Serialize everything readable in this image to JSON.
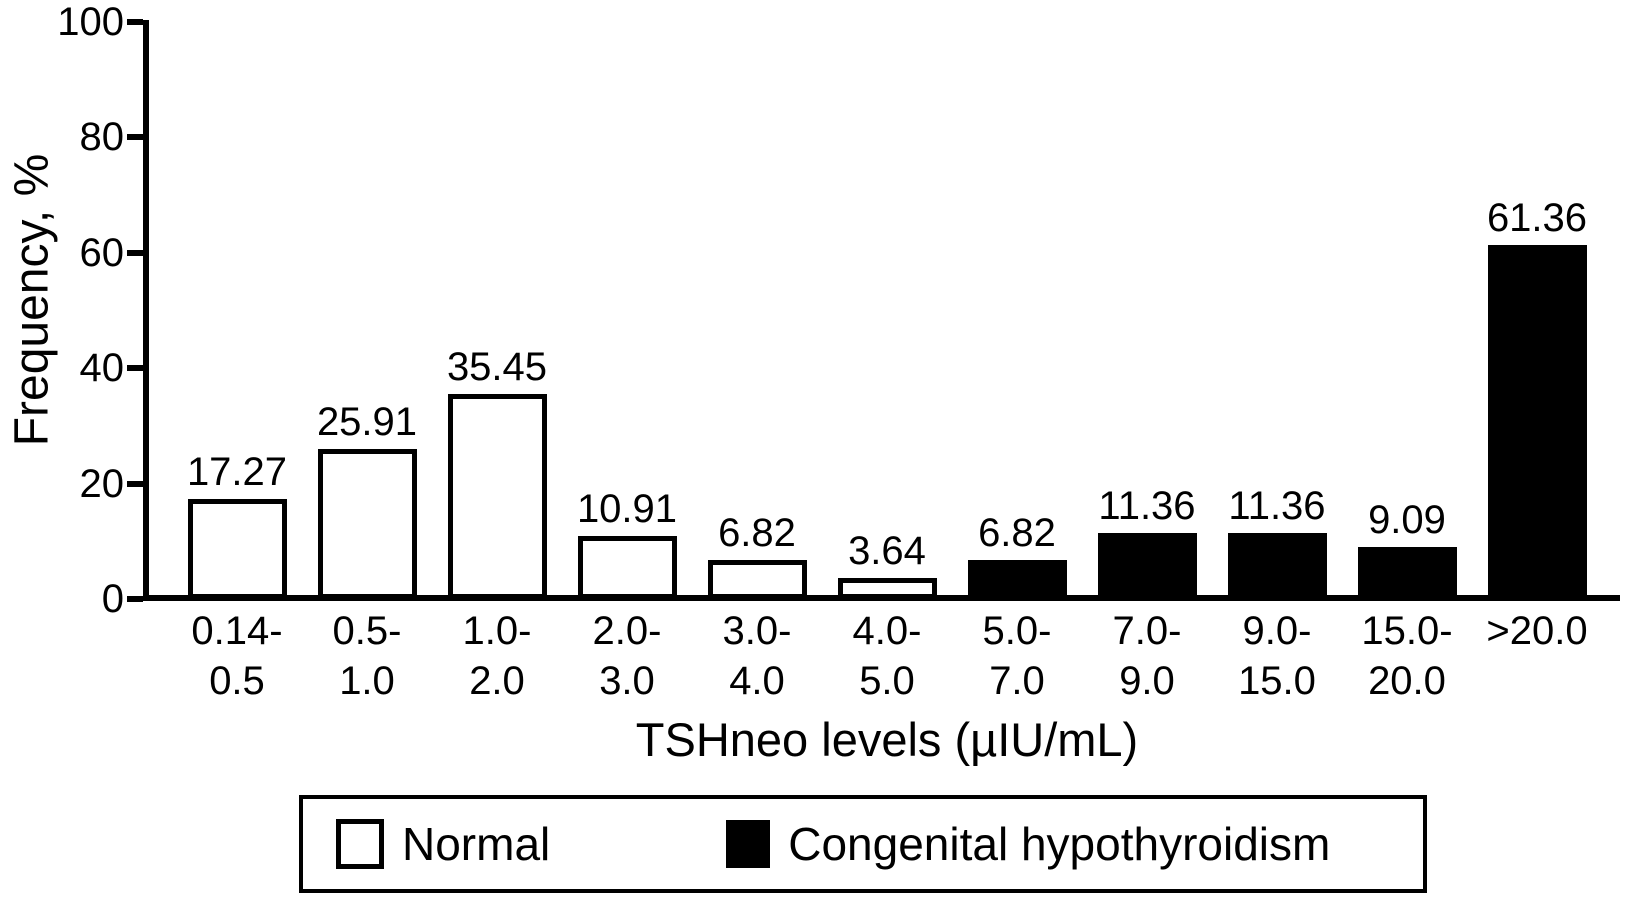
{
  "chart_data": {
    "type": "bar",
    "title": "",
    "xlabel": "TSHneo levels (µIU/mL)",
    "ylabel": "Frequency, %",
    "ylim": [
      0,
      100
    ],
    "yticks": [
      0,
      20,
      40,
      60,
      80,
      100
    ],
    "grid": false,
    "legend_position": "bottom",
    "categories": [
      "0.14-0.5",
      "0.5-1.0",
      "1.0-2.0",
      "2.0-3.0",
      "3.0-4.0",
      "4.0-5.0",
      "5.0-7.0",
      "7.0-9.0",
      "9.0-15.0",
      "15.0-20.0",
      ">20.0"
    ],
    "x_tick_labels": [
      [
        "0.14-",
        "0.5"
      ],
      [
        "0.5-",
        "1.0"
      ],
      [
        "1.0-",
        "2.0"
      ],
      [
        "2.0-",
        "3.0"
      ],
      [
        "3.0-",
        "4.0"
      ],
      [
        "4.0-",
        "5.0"
      ],
      [
        "5.0-",
        "7.0"
      ],
      [
        "7.0-",
        "9.0"
      ],
      [
        "9.0-",
        "15.0"
      ],
      [
        "15.0-",
        "20.0"
      ],
      [
        ">20.0"
      ]
    ],
    "values": [
      17.27,
      25.91,
      35.45,
      10.91,
      6.82,
      3.64,
      6.82,
      11.36,
      11.36,
      9.09,
      61.36
    ],
    "value_labels": [
      "17.27",
      "25.91",
      "35.45",
      "10.91",
      "6.82",
      "3.64",
      "6.82",
      "11.36",
      "11.36",
      "9.09",
      "61.36"
    ],
    "groups": [
      "Normal",
      "Normal",
      "Normal",
      "Normal",
      "Normal",
      "Normal",
      "Congenital hypothyroidism",
      "Congenital hypothyroidism",
      "Congenital hypothyroidism",
      "Congenital hypothyroidism",
      "Congenital hypothyroidism"
    ],
    "legend": [
      {
        "label": "Normal",
        "fill": "#ffffff",
        "border": "#000000"
      },
      {
        "label": "Congenital hypothyroidism",
        "fill": "#000000",
        "border": "#000000"
      }
    ],
    "colors": {
      "normal_bar_fill": "#ffffff",
      "hypothyroidism_bar_fill": "#000000",
      "axis": "#000000",
      "text": "#000000",
      "background": "#ffffff"
    }
  }
}
